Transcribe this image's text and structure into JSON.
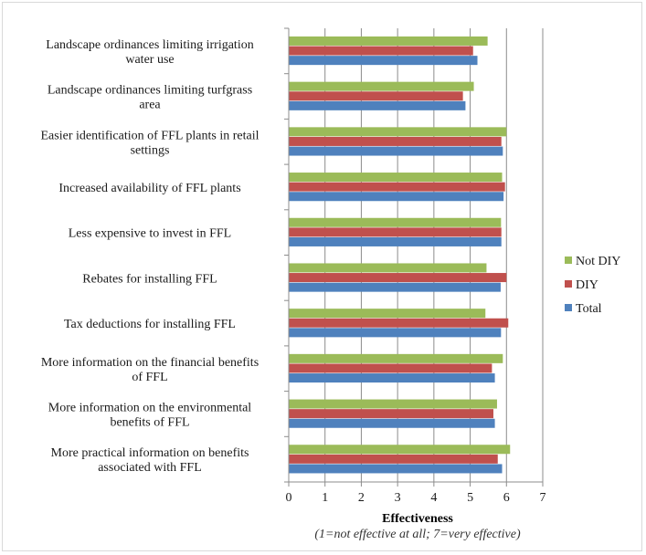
{
  "chart_data": {
    "type": "bar",
    "orientation": "horizontal",
    "categories": [
      [
        "Landscape ordinances limiting irrigation",
        "water use"
      ],
      [
        "Landscape ordinances limiting turfgrass",
        "area"
      ],
      [
        "Easier identification of FFL plants in retail",
        "settings"
      ],
      [
        "Increased availability of FFL plants"
      ],
      [
        "Less expensive to invest in FFL"
      ],
      [
        "Rebates for installing FFL"
      ],
      [
        "Tax deductions for installing FFL"
      ],
      [
        "More information on the financial benefits",
        "of FFL"
      ],
      [
        "More information on the environmental",
        "benefits of FFL"
      ],
      [
        "More practical information on benefits",
        "associated with FFL"
      ]
    ],
    "series": [
      {
        "name": "Not DIY",
        "color": "#9bbb59",
        "values": [
          5.48,
          5.1,
          6.0,
          5.88,
          5.85,
          5.45,
          5.42,
          5.9,
          5.74,
          6.1
        ]
      },
      {
        "name": "DIY",
        "color": "#c0504d",
        "values": [
          5.08,
          4.8,
          5.86,
          5.96,
          5.86,
          6.0,
          6.05,
          5.6,
          5.64,
          5.76
        ]
      },
      {
        "name": "Total",
        "color": "#4f81bd",
        "values": [
          5.2,
          4.87,
          5.9,
          5.92,
          5.86,
          5.84,
          5.85,
          5.68,
          5.68,
          5.88
        ]
      }
    ],
    "xlim": [
      0,
      7
    ],
    "xticks": [
      "0",
      "1",
      "2",
      "3",
      "4",
      "5",
      "6",
      "7"
    ],
    "xlabel": "Effectiveness",
    "xlabel_note": "(1=not effective at all; 7=very effective)",
    "legend": [
      "Not DIY",
      "DIY",
      "Total"
    ],
    "legend_position": "right",
    "grid": "vertical"
  }
}
